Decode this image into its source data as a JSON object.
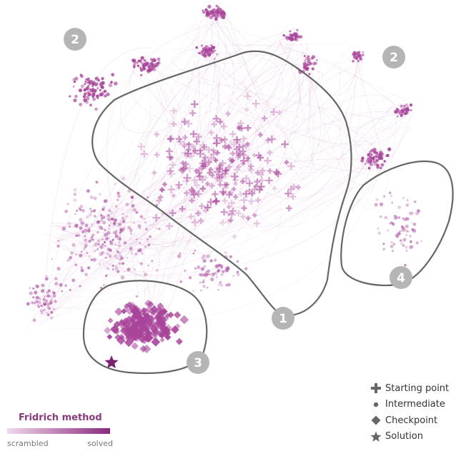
{
  "regions": [
    {
      "label": "1"
    },
    {
      "label": "2"
    },
    {
      "label": "2"
    },
    {
      "label": "3"
    },
    {
      "label": "4"
    }
  ],
  "legend": {
    "items": [
      {
        "icon": "plus-icon",
        "label": "Starting point"
      },
      {
        "icon": "dot-icon",
        "label": "Intermediate"
      },
      {
        "icon": "diamond-icon",
        "label": "Checkpoint"
      },
      {
        "icon": "star-icon",
        "label": "Solution"
      }
    ]
  },
  "color_scale": {
    "title": "Fridrich method",
    "start_label": "scrambled",
    "end_label": "solved",
    "start_color": "#efd8ea",
    "end_color": "#8b2a7c"
  },
  "colors": {
    "accent": "#a8449a",
    "outline": "#666666",
    "badge": "#b5b5b5"
  }
}
